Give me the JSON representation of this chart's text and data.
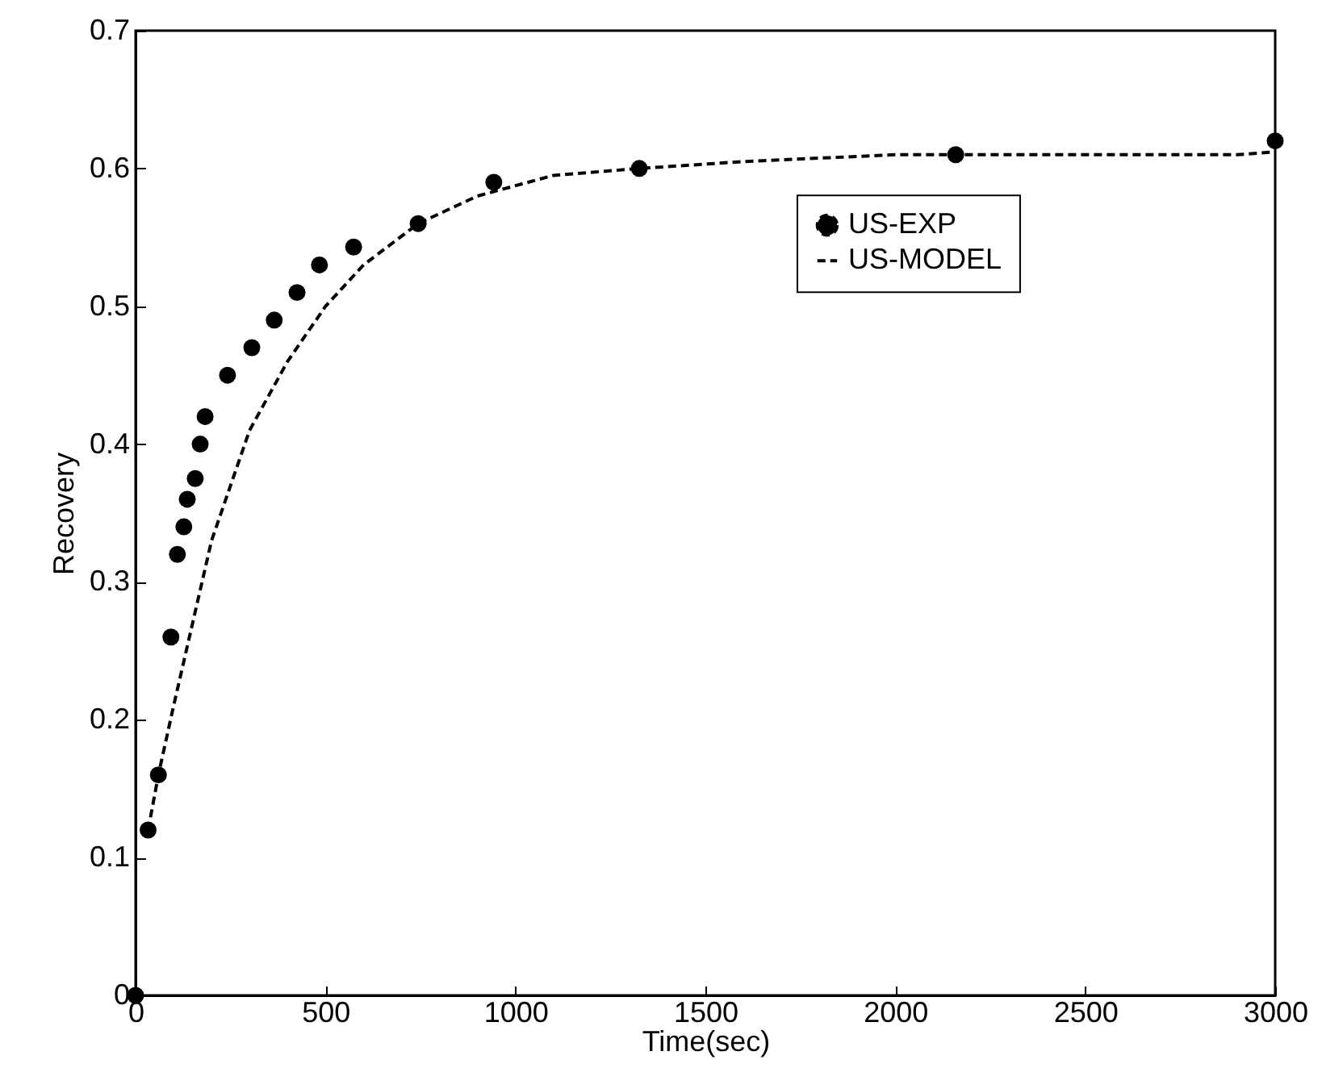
{
  "chart_data": {
    "type": "scatter",
    "xlabel": "Time(sec)",
    "ylabel": "Recovery",
    "xlim": [
      0,
      3000
    ],
    "xticks": [
      0,
      500,
      1000,
      1500,
      2000,
      2500,
      3000
    ],
    "ylim": [
      0,
      0.7
    ],
    "yticks": [
      0,
      0.1,
      0.2,
      0.3,
      0.4,
      0.5,
      0.6,
      0.7
    ],
    "grid": false,
    "legend": "top right",
    "series": [
      {
        "name": "US-EXP",
        "marker": "circle",
        "color": "#000000",
        "x": [
          0,
          33,
          60,
          93,
          110,
          127,
          136,
          157,
          170,
          183,
          242,
          306,
          365,
          425,
          484,
          574,
          744,
          943,
          1326,
          2159,
          3000
        ],
        "values": [
          0,
          0.12,
          0.16,
          0.26,
          0.32,
          0.34,
          0.36,
          0.375,
          0.4,
          0.42,
          0.45,
          0.47,
          0.49,
          0.51,
          0.53,
          0.543,
          0.56,
          0.59,
          0.6,
          0.61,
          0.62
        ]
      },
      {
        "name": "US-MODEL",
        "type": "line",
        "line_style": "dashed",
        "marker": "none",
        "color": "#000000",
        "x": [
          33,
          60,
          100,
          150,
          200,
          300,
          400,
          500,
          600,
          744,
          900,
          1100,
          1326,
          1600,
          2000,
          2900,
          3000
        ],
        "values": [
          0.12,
          0.16,
          0.21,
          0.27,
          0.33,
          0.41,
          0.46,
          0.5,
          0.53,
          0.56,
          0.58,
          0.595,
          0.6,
          0.605,
          0.61,
          0.61,
          0.612
        ]
      }
    ]
  }
}
